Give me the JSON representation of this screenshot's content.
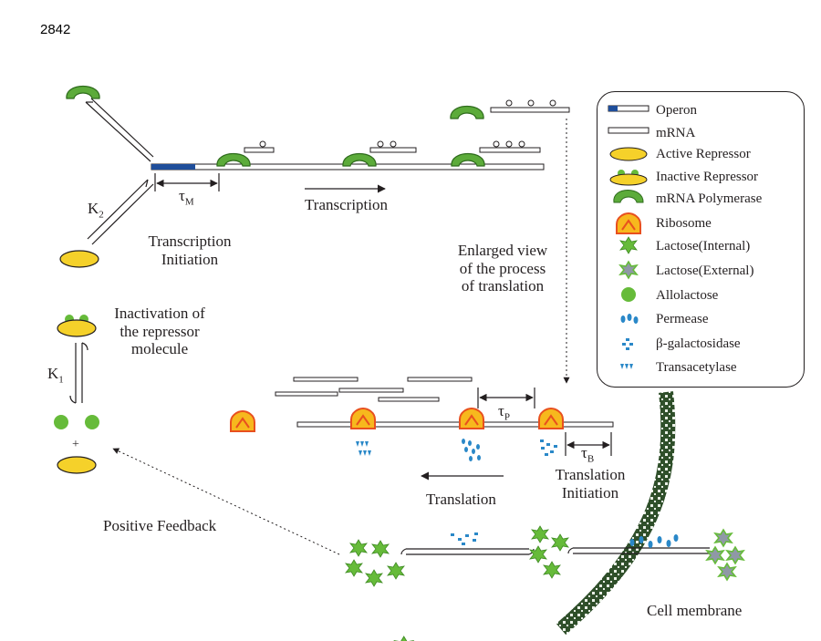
{
  "page_number": "2842",
  "labels": {
    "k2": "K",
    "k2_sub": "2",
    "k1": "K",
    "k1_sub": "1",
    "tau_m": "τ",
    "tau_m_sub": "M",
    "tau_p": "τ",
    "tau_p_sub": "P",
    "tau_b": "τ",
    "tau_b_sub": "B",
    "transcription": "Transcription",
    "transcription_initiation_l1": "Transcription",
    "transcription_initiation_l2": "Initiation",
    "enlarged_l1": "Enlarged view",
    "enlarged_l2": "of the process",
    "enlarged_l3": "of translation",
    "inactivation_l1": "Inactivation of",
    "inactivation_l2": "the repressor",
    "inactivation_l3": "molecule",
    "plus": "+",
    "translation": "Translation",
    "translation_initiation_l1": "Translation",
    "translation_initiation_l2": "Initiation",
    "positive_feedback": "Positive Feedback",
    "cell_membrane": "Cell membrane"
  },
  "legend": [
    {
      "icon": "operon-icon",
      "label": "Operon"
    },
    {
      "icon": "mrna-icon",
      "label": "mRNA"
    },
    {
      "icon": "active-repressor-icon",
      "label": "Active Repressor"
    },
    {
      "icon": "inactive-repressor-icon",
      "label": "Inactive Repressor"
    },
    {
      "icon": "mrna-polymerase-icon",
      "label": "mRNA Polymerase"
    },
    {
      "icon": "ribosome-icon",
      "label": "Ribosome"
    },
    {
      "icon": "lactose-internal-icon",
      "label": "Lactose(Internal)"
    },
    {
      "icon": "lactose-external-icon",
      "label": "Lactose(External)"
    },
    {
      "icon": "allolactose-icon",
      "label": "Allolactose"
    },
    {
      "icon": "permease-icon",
      "label": "Permease"
    },
    {
      "icon": "beta-galactosidase-icon",
      "label": "β-galactosidase"
    },
    {
      "icon": "transacetylase-icon",
      "label": "Transacetylase"
    }
  ],
  "colors": {
    "operon": "#1f4e9a",
    "repressor": "#f5d12a",
    "polymerase": "#5cab3a",
    "ribosome_fill": "#f7b81d",
    "ribosome_edge": "#e8501e",
    "lactose_internal": "#66bb3a",
    "lactose_external": "#8f98a6",
    "protein_blue": "#2a88c8",
    "membrane": "#2f4f2a"
  }
}
